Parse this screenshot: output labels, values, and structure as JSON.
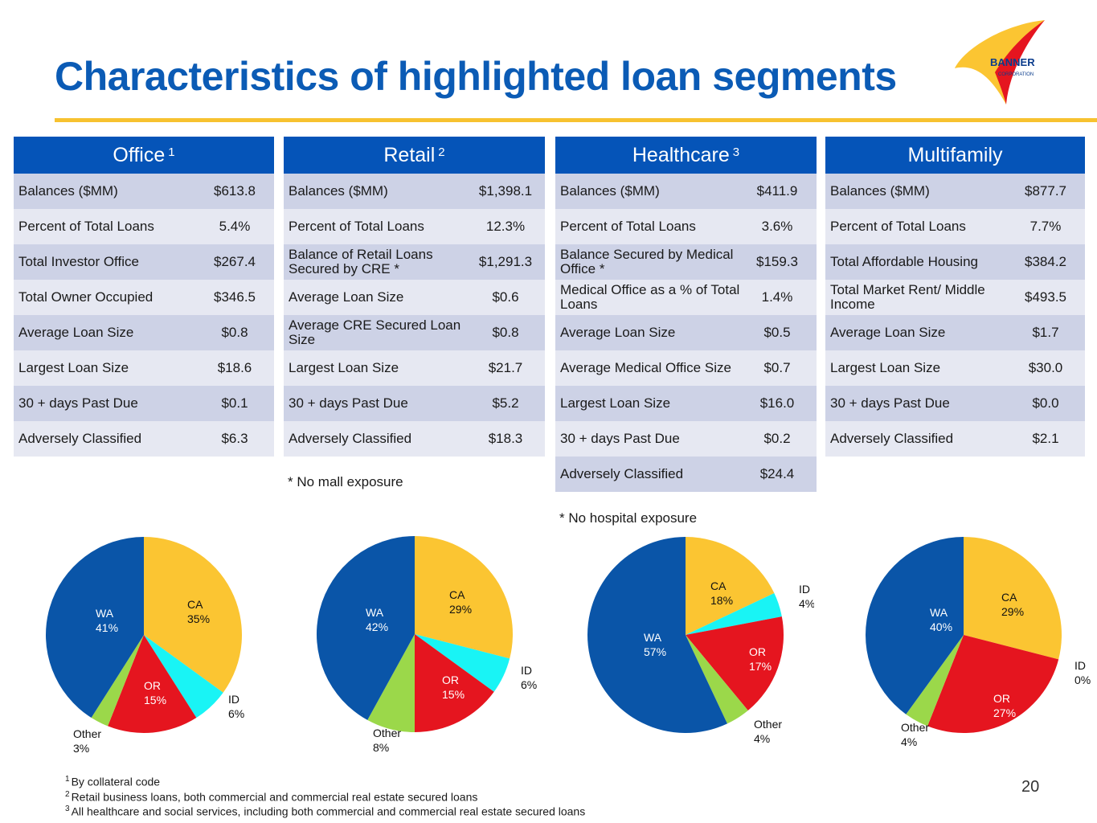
{
  "title": "Characteristics of highlighted loan segments",
  "logo": {
    "name": "BANNER",
    "sub": "CORPORATION"
  },
  "colors": {
    "CA": "#fbc532",
    "ID": "#19f4f5",
    "OR": "#e5151f",
    "Other": "#9bd84a",
    "WA": "#0a55a8",
    "header": "#0554b8",
    "title": "#0b5bb5",
    "accent": "#f7c230"
  },
  "tables": [
    {
      "title": "Office",
      "sup": "1",
      "rows": [
        {
          "label": "Balances ($MM)",
          "value": "$613.8"
        },
        {
          "label": "Percent of Total Loans",
          "value": "5.4%"
        },
        {
          "label": "Total Investor Office",
          "value": "$267.4"
        },
        {
          "label": "Total Owner Occupied",
          "value": "$346.5"
        },
        {
          "label": "Average Loan Size",
          "value": "$0.8"
        },
        {
          "label": "Largest Loan Size",
          "value": "$18.6"
        },
        {
          "label": "30 + days Past Due",
          "value": "$0.1"
        },
        {
          "label": "Adversely Classified",
          "value": "$6.3"
        }
      ],
      "note": ""
    },
    {
      "title": "Retail",
      "sup": "2",
      "rows": [
        {
          "label": "Balances ($MM)",
          "value": "$1,398.1"
        },
        {
          "label": "Percent of Total Loans",
          "value": "12.3%"
        },
        {
          "label": "Balance of Retail Loans Secured by CRE *",
          "value": "$1,291.3"
        },
        {
          "label": "Average Loan Size",
          "value": "$0.6"
        },
        {
          "label": "Average CRE Secured Loan Size",
          "value": "$0.8"
        },
        {
          "label": "Largest Loan Size",
          "value": "$21.7"
        },
        {
          "label": "30 + days Past Due",
          "value": "$5.2"
        },
        {
          "label": "Adversely Classified",
          "value": "$18.3"
        }
      ],
      "note": "* No mall exposure"
    },
    {
      "title": "Healthcare",
      "sup": "3",
      "rows": [
        {
          "label": "Balances ($MM)",
          "value": "$411.9"
        },
        {
          "label": "Percent of Total Loans",
          "value": "3.6%"
        },
        {
          "label": "Balance Secured by Medical Office *",
          "value": "$159.3"
        },
        {
          "label": "Medical Office as a % of Total Loans",
          "value": "1.4%"
        },
        {
          "label": "Average Loan Size",
          "value": "$0.5"
        },
        {
          "label": "Average Medical Office Size",
          "value": "$0.7"
        },
        {
          "label": "Largest Loan Size",
          "value": "$16.0"
        },
        {
          "label": "30 + days Past Due",
          "value": "$0.2"
        },
        {
          "label": "Adversely Classified",
          "value": "$24.4"
        }
      ],
      "note": "* No hospital exposure"
    },
    {
      "title": "Multifamily",
      "sup": "",
      "rows": [
        {
          "label": "Balances ($MM)",
          "value": "$877.7"
        },
        {
          "label": "Percent of Total Loans",
          "value": "7.7%"
        },
        {
          "label": "Total Affordable Housing",
          "value": "$384.2"
        },
        {
          "label": "Total Market Rent/ Middle Income",
          "value": "$493.5"
        },
        {
          "label": "Average Loan Size",
          "value": "$1.7"
        },
        {
          "label": "Largest Loan Size",
          "value": "$30.0"
        },
        {
          "label": "30 + days Past Due",
          "value": "$0.0"
        },
        {
          "label": "Adversely Classified",
          "value": "$2.1"
        }
      ],
      "note": ""
    }
  ],
  "chart_data": [
    {
      "type": "pie",
      "segment": "Office",
      "categories": [
        "CA",
        "ID",
        "OR",
        "Other",
        "WA"
      ],
      "values": [
        35,
        6,
        15,
        3,
        41
      ],
      "labels": [
        "35%",
        "6%",
        "15%",
        "3%",
        "41%"
      ]
    },
    {
      "type": "pie",
      "segment": "Retail",
      "categories": [
        "CA",
        "ID",
        "OR",
        "Other",
        "WA"
      ],
      "values": [
        29,
        6,
        15,
        8,
        42
      ],
      "labels": [
        "29%",
        "6%",
        "15%",
        "8%",
        "42%"
      ]
    },
    {
      "type": "pie",
      "segment": "Healthcare",
      "categories": [
        "CA",
        "ID",
        "OR",
        "Other",
        "WA"
      ],
      "values": [
        18,
        4,
        17,
        4,
        57
      ],
      "labels": [
        "18%",
        "4%",
        "17%",
        "4%",
        "57%"
      ]
    },
    {
      "type": "pie",
      "segment": "Multifamily",
      "categories": [
        "CA",
        "ID",
        "OR",
        "Other",
        "WA"
      ],
      "values": [
        29,
        0,
        27,
        4,
        40
      ],
      "labels": [
        "29%",
        "0%",
        "27%",
        "4%",
        "40%"
      ]
    }
  ],
  "footnotes": [
    {
      "sup": "1",
      "text": "By collateral code"
    },
    {
      "sup": "2",
      "text": "Retail business loans, both commercial and commercial real estate secured loans"
    },
    {
      "sup": "3",
      "text": "All healthcare and social services, including both commercial and commercial real estate secured loans"
    }
  ],
  "page_number": "20"
}
